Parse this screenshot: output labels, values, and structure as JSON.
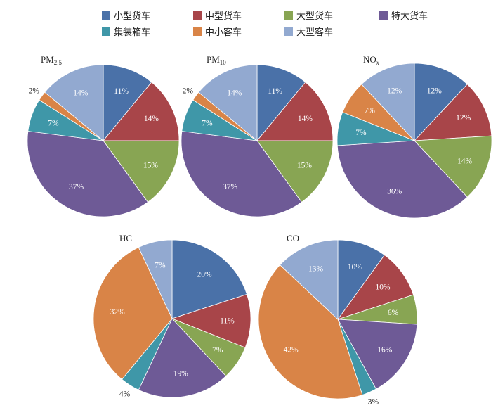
{
  "legend": [
    {
      "label": "小型货车",
      "color": "#4a71a8"
    },
    {
      "label": "中型货车",
      "color": "#a84549"
    },
    {
      "label": "大型货车",
      "color": "#88a553"
    },
    {
      "label": "特大货车",
      "color": "#6e5a96"
    },
    {
      "label": "集装箱车",
      "color": "#3f97a8"
    },
    {
      "label": "中小客车",
      "color": "#d98447"
    },
    {
      "label": "大型客车",
      "color": "#92a9d0"
    }
  ],
  "chart_data": [
    {
      "type": "pie",
      "title": "PM2.5",
      "title_base": "PM",
      "title_sub": "2.5",
      "categories": [
        "小型货车",
        "中型货车",
        "大型货车",
        "特大货车",
        "集装箱车",
        "中小客车",
        "大型客车"
      ],
      "values": [
        11,
        14,
        15,
        37,
        7,
        2,
        14
      ],
      "labels": [
        "11%",
        "14%",
        "15%",
        "37%",
        "7%",
        "2%",
        "14%"
      ]
    },
    {
      "type": "pie",
      "title": "PM10",
      "title_base": "PM",
      "title_sub": "10",
      "categories": [
        "小型货车",
        "中型货车",
        "大型货车",
        "特大货车",
        "集装箱车",
        "中小客车",
        "大型客车"
      ],
      "values": [
        11,
        14,
        15,
        37,
        7,
        2,
        14
      ],
      "labels": [
        "11%",
        "14%",
        "15%",
        "37%",
        "7%",
        "2%",
        "14%"
      ]
    },
    {
      "type": "pie",
      "title": "NOx",
      "title_base": "NO",
      "title_sub": "x",
      "categories": [
        "小型货车",
        "中型货车",
        "大型货车",
        "特大货车",
        "集装箱车",
        "中小客车",
        "大型客车"
      ],
      "values": [
        12,
        12,
        14,
        36,
        7,
        7,
        12
      ],
      "labels": [
        "12%",
        "12%",
        "14%",
        "36%",
        "7%",
        "7%",
        "12%"
      ]
    },
    {
      "type": "pie",
      "title": "HC",
      "title_base": "HC",
      "title_sub": "",
      "categories": [
        "小型货车",
        "中型货车",
        "大型货车",
        "特大货车",
        "集装箱车",
        "中小客车",
        "大型客车"
      ],
      "values": [
        20,
        11,
        7,
        19,
        4,
        32,
        7
      ],
      "labels": [
        "20%",
        "11%",
        "7%",
        "19%",
        "4%",
        "32%",
        "7%"
      ]
    },
    {
      "type": "pie",
      "title": "CO",
      "title_base": "CO",
      "title_sub": "",
      "categories": [
        "小型货车",
        "中型货车",
        "大型货车",
        "特大货车",
        "集装箱车",
        "中小客车",
        "大型客车"
      ],
      "values": [
        10,
        10,
        6,
        16,
        3,
        42,
        13
      ],
      "labels": [
        "10%",
        "10%",
        "6%",
        "16%",
        "3%",
        "42%",
        "13%"
      ]
    }
  ]
}
